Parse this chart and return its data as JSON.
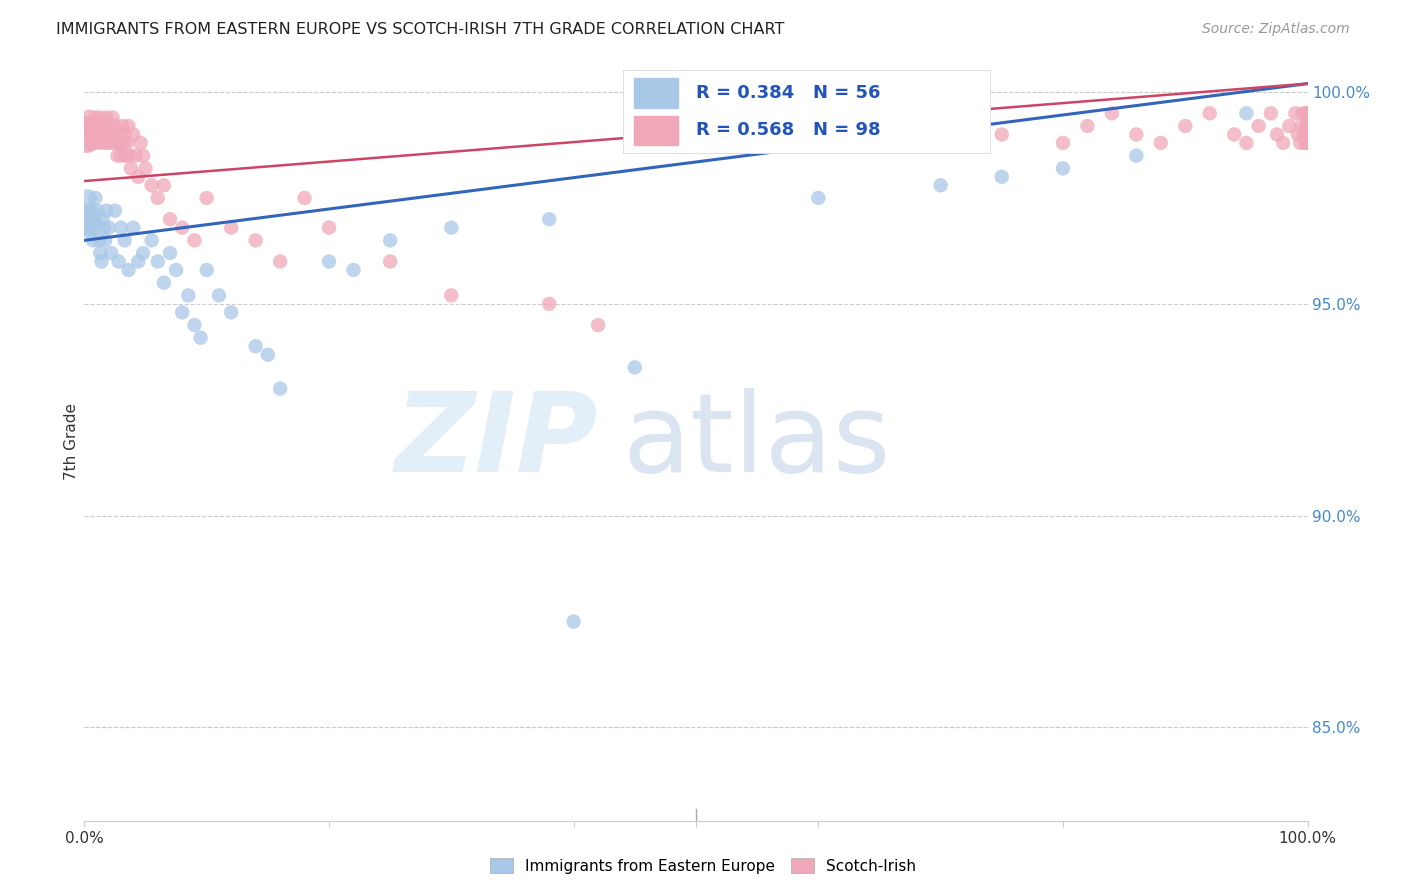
{
  "title": "IMMIGRANTS FROM EASTERN EUROPE VS SCOTCH-IRISH 7TH GRADE CORRELATION CHART",
  "source": "Source: ZipAtlas.com",
  "ylabel": "7th Grade",
  "right_yticks": [
    85.0,
    90.0,
    95.0,
    100.0
  ],
  "legend_blue_label": "Immigrants from Eastern Europe",
  "legend_pink_label": "Scotch-Irish",
  "blue_R": 0.384,
  "blue_N": 56,
  "pink_R": 0.568,
  "pink_N": 98,
  "blue_color": "#a8c8e8",
  "pink_color": "#f0a8b8",
  "blue_line_color": "#3366bb",
  "pink_line_color": "#cc4466",
  "blue_line_x0": 0.0,
  "blue_line_y0": 0.965,
  "blue_line_x1": 1.0,
  "blue_line_y1": 1.002,
  "pink_line_x0": 0.0,
  "pink_line_y0": 0.979,
  "pink_line_x1": 1.0,
  "pink_line_y1": 1.002,
  "xlim": [
    0.0,
    1.0
  ],
  "ylim": [
    0.828,
    1.007
  ],
  "blue_scatter_x": [
    0.001,
    0.002,
    0.003,
    0.004,
    0.005,
    0.006,
    0.007,
    0.008,
    0.009,
    0.01,
    0.011,
    0.012,
    0.013,
    0.014,
    0.015,
    0.016,
    0.017,
    0.018,
    0.02,
    0.022,
    0.025,
    0.028,
    0.03,
    0.033,
    0.036,
    0.04,
    0.044,
    0.048,
    0.055,
    0.06,
    0.065,
    0.07,
    0.075,
    0.08,
    0.085,
    0.09,
    0.095,
    0.1,
    0.11,
    0.12,
    0.14,
    0.15,
    0.16,
    0.2,
    0.22,
    0.25,
    0.3,
    0.38,
    0.4,
    0.45,
    0.6,
    0.7,
    0.75,
    0.8,
    0.86,
    0.95
  ],
  "blue_scatter_y": [
    0.97,
    0.968,
    0.975,
    0.972,
    0.968,
    0.972,
    0.965,
    0.97,
    0.975,
    0.968,
    0.972,
    0.965,
    0.962,
    0.96,
    0.97,
    0.968,
    0.965,
    0.972,
    0.968,
    0.962,
    0.972,
    0.96,
    0.968,
    0.965,
    0.958,
    0.968,
    0.96,
    0.962,
    0.965,
    0.96,
    0.955,
    0.962,
    0.958,
    0.948,
    0.952,
    0.945,
    0.942,
    0.958,
    0.952,
    0.948,
    0.94,
    0.938,
    0.93,
    0.96,
    0.958,
    0.965,
    0.968,
    0.97,
    0.875,
    0.935,
    0.975,
    0.978,
    0.98,
    0.982,
    0.985,
    0.995
  ],
  "blue_scatter_sizes": [
    500,
    200,
    150,
    120,
    120,
    100,
    100,
    100,
    100,
    100,
    100,
    100,
    100,
    100,
    100,
    100,
    100,
    100,
    100,
    100,
    100,
    100,
    100,
    100,
    100,
    100,
    100,
    100,
    100,
    100,
    100,
    100,
    100,
    100,
    100,
    100,
    100,
    100,
    100,
    100,
    100,
    100,
    100,
    100,
    100,
    100,
    100,
    100,
    100,
    100,
    100,
    100,
    100,
    100,
    100,
    100
  ],
  "pink_scatter_x": [
    0.001,
    0.002,
    0.003,
    0.004,
    0.005,
    0.006,
    0.007,
    0.008,
    0.009,
    0.01,
    0.011,
    0.012,
    0.013,
    0.014,
    0.015,
    0.016,
    0.017,
    0.018,
    0.019,
    0.02,
    0.021,
    0.022,
    0.023,
    0.024,
    0.025,
    0.026,
    0.027,
    0.028,
    0.029,
    0.03,
    0.031,
    0.032,
    0.033,
    0.034,
    0.035,
    0.036,
    0.037,
    0.038,
    0.04,
    0.042,
    0.044,
    0.046,
    0.048,
    0.05,
    0.055,
    0.06,
    0.065,
    0.07,
    0.08,
    0.09,
    0.1,
    0.12,
    0.14,
    0.16,
    0.18,
    0.2,
    0.25,
    0.3,
    0.38,
    0.42,
    0.5,
    0.55,
    0.6,
    0.65,
    0.7,
    0.75,
    0.8,
    0.82,
    0.84,
    0.86,
    0.88,
    0.9,
    0.92,
    0.94,
    0.95,
    0.96,
    0.97,
    0.975,
    0.98,
    0.985,
    0.99,
    0.992,
    0.994,
    0.995,
    0.996,
    0.997,
    0.998,
    0.999,
    0.999,
    0.999,
    0.999,
    1.0,
    1.0,
    1.0,
    1.0,
    1.0,
    1.0,
    1.0
  ],
  "pink_scatter_y": [
    0.99,
    0.992,
    0.988,
    0.994,
    0.99,
    0.992,
    0.988,
    0.99,
    0.994,
    0.99,
    0.992,
    0.988,
    0.994,
    0.99,
    0.992,
    0.988,
    0.99,
    0.994,
    0.988,
    0.992,
    0.99,
    0.988,
    0.994,
    0.99,
    0.992,
    0.988,
    0.985,
    0.99,
    0.988,
    0.985,
    0.992,
    0.988,
    0.99,
    0.985,
    0.988,
    0.992,
    0.985,
    0.982,
    0.99,
    0.985,
    0.98,
    0.988,
    0.985,
    0.982,
    0.978,
    0.975,
    0.978,
    0.97,
    0.968,
    0.965,
    0.975,
    0.968,
    0.965,
    0.96,
    0.975,
    0.968,
    0.96,
    0.952,
    0.95,
    0.945,
    0.995,
    0.99,
    0.988,
    0.992,
    0.995,
    0.99,
    0.988,
    0.992,
    0.995,
    0.99,
    0.988,
    0.992,
    0.995,
    0.99,
    0.988,
    0.992,
    0.995,
    0.99,
    0.988,
    0.992,
    0.995,
    0.99,
    0.988,
    0.992,
    0.995,
    0.99,
    0.988,
    0.992,
    0.995,
    0.99,
    0.988,
    0.992,
    0.995,
    0.99,
    0.988,
    0.992,
    0.995,
    0.99
  ],
  "pink_scatter_sizes": [
    700,
    200,
    150,
    120,
    120,
    100,
    100,
    100,
    100,
    100,
    100,
    100,
    100,
    100,
    100,
    100,
    100,
    100,
    100,
    100,
    100,
    100,
    100,
    100,
    100,
    100,
    100,
    100,
    100,
    100,
    100,
    100,
    100,
    100,
    100,
    100,
    100,
    100,
    100,
    100,
    100,
    100,
    100,
    100,
    100,
    100,
    100,
    100,
    100,
    100,
    100,
    100,
    100,
    100,
    100,
    100,
    100,
    100,
    100,
    100,
    100,
    100,
    100,
    100,
    100,
    100,
    100,
    100,
    100,
    100,
    100,
    100,
    100,
    100,
    100,
    100,
    100,
    100,
    100,
    100,
    100,
    100,
    100,
    100,
    100,
    100,
    100,
    100,
    100,
    100,
    100,
    100,
    100,
    100,
    100,
    100,
    100,
    100
  ]
}
